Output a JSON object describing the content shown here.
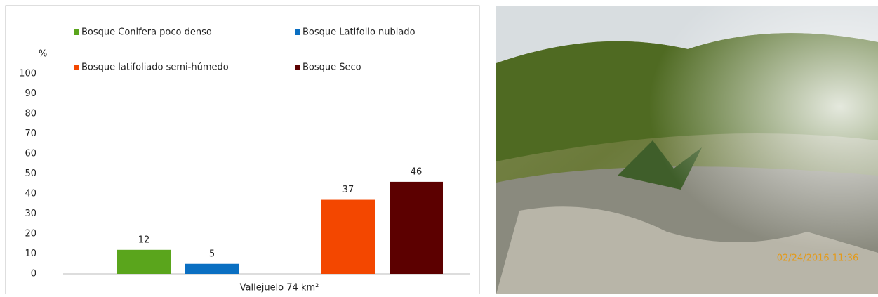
{
  "chart_data": {
    "type": "bar",
    "ylabel": "%",
    "categories": [
      "Vallejuelo 74 km²"
    ],
    "series": [
      {
        "name": "Bosque Conifera poco denso",
        "color": "#5aa51c",
        "values": [
          12
        ]
      },
      {
        "name": "Bosque Latifolio nublado",
        "color": "#0a6fc2",
        "values": [
          5
        ]
      },
      {
        "name": "Bosque latifoliado semi-húmedo",
        "color": "#f34700",
        "values": [
          37
        ]
      },
      {
        "name": "Bosque Seco",
        "color": "#5c0000",
        "values": [
          46
        ]
      }
    ],
    "ylim": [
      0,
      100
    ],
    "yticks": [
      0,
      10,
      20,
      30,
      40,
      50,
      60,
      70,
      80,
      90,
      100
    ],
    "grid": false
  },
  "photo": {
    "timestamp": "02/24/2016 11:36"
  }
}
